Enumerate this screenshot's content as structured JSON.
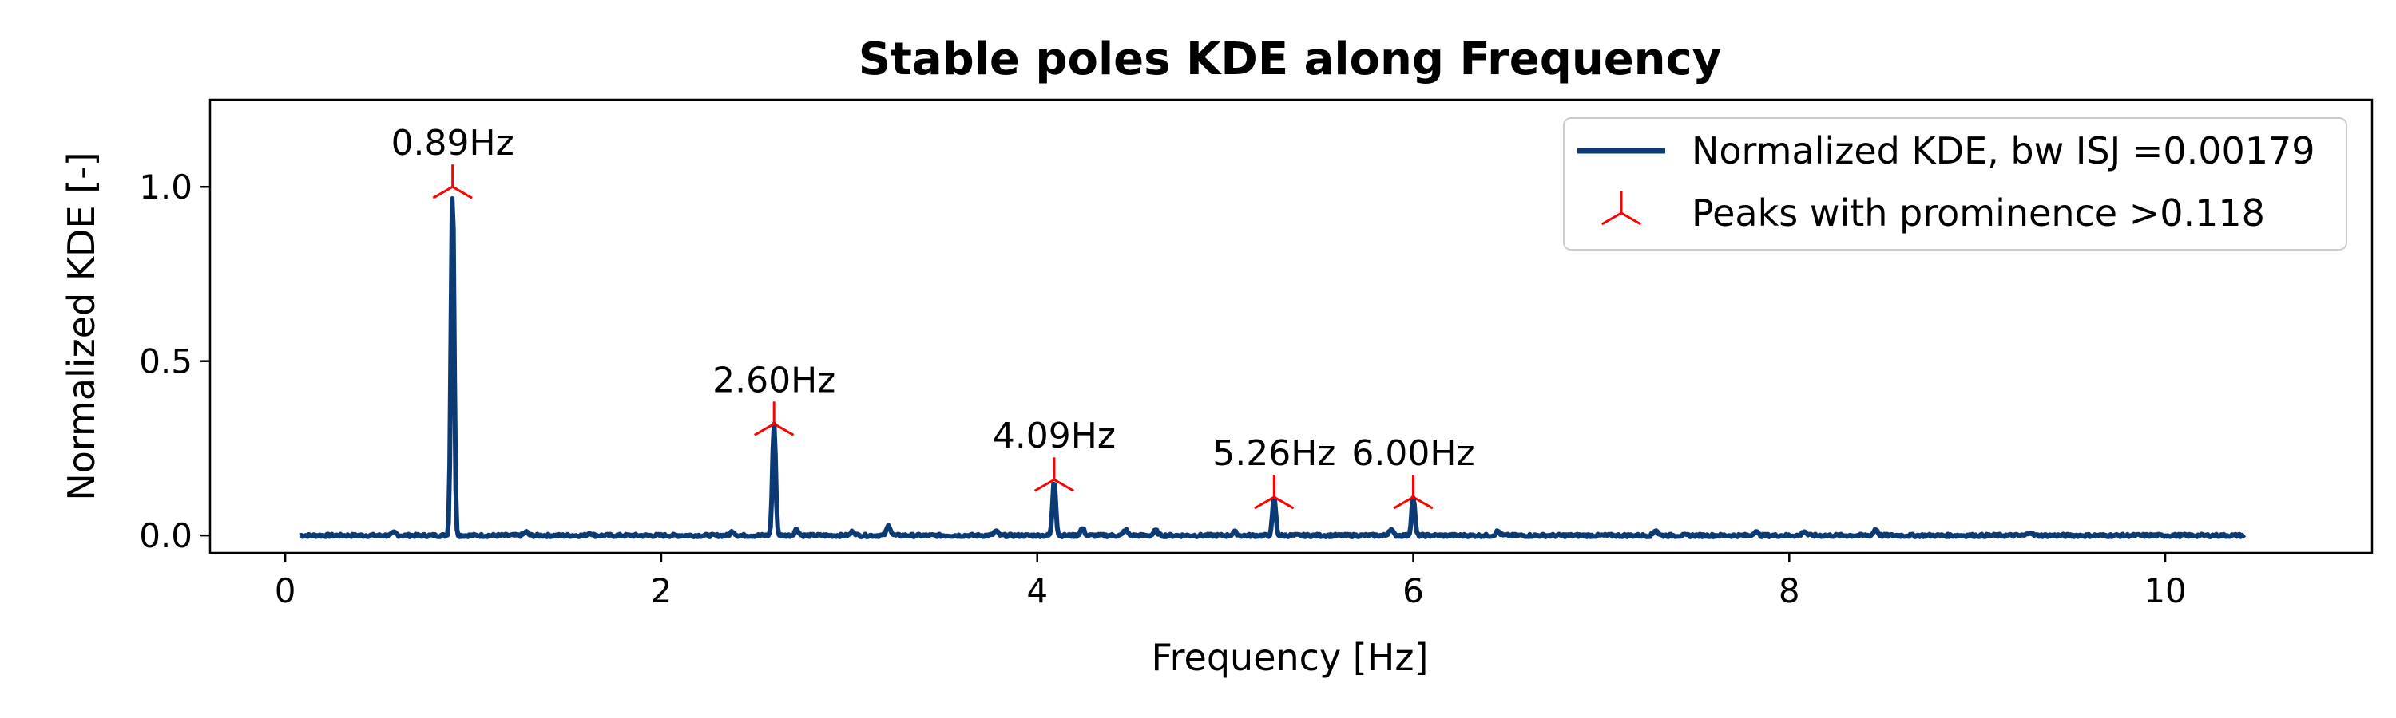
{
  "chart_data": {
    "type": "line",
    "title": "Stable poles KDE along Frequency",
    "xlabel": "Frequency [Hz]",
    "ylabel": "Normalized KDE [-]",
    "xlim": [
      -0.4,
      11.1
    ],
    "ylim": [
      -0.05,
      1.25
    ],
    "x_ticks": [
      0,
      2,
      4,
      6,
      8,
      10
    ],
    "x_tick_labels": [
      "0",
      "2",
      "4",
      "6",
      "8",
      "10"
    ],
    "y_ticks": [
      0.0,
      0.5,
      1.0
    ],
    "y_tick_labels": [
      "0.0",
      "0.5",
      "1.0"
    ],
    "grid": false,
    "legend_position": "top-right",
    "line_color": "#0b3a75",
    "marker_color": "#ff0000",
    "series": [
      {
        "name": "Normalized KDE, bw ISJ =0.00179",
        "kind": "line",
        "x_range": [
          0.08,
          10.42
        ],
        "baseline": 0.0,
        "peaks": [
          {
            "x": 0.89,
            "y": 1.0
          },
          {
            "x": 2.6,
            "y": 0.32
          },
          {
            "x": 4.09,
            "y": 0.16
          },
          {
            "x": 5.26,
            "y": 0.11
          },
          {
            "x": 6.0,
            "y": 0.11
          }
        ],
        "minor_bumps": [
          {
            "x": 0.58,
            "y": 0.008
          },
          {
            "x": 1.28,
            "y": 0.01
          },
          {
            "x": 1.62,
            "y": 0.008
          },
          {
            "x": 2.38,
            "y": 0.012
          },
          {
            "x": 2.72,
            "y": 0.018
          },
          {
            "x": 3.02,
            "y": 0.012
          },
          {
            "x": 3.21,
            "y": 0.028
          },
          {
            "x": 3.78,
            "y": 0.012
          },
          {
            "x": 4.24,
            "y": 0.02
          },
          {
            "x": 4.47,
            "y": 0.016
          },
          {
            "x": 4.63,
            "y": 0.014
          },
          {
            "x": 5.05,
            "y": 0.01
          },
          {
            "x": 5.88,
            "y": 0.018
          },
          {
            "x": 6.45,
            "y": 0.012
          },
          {
            "x": 7.29,
            "y": 0.016
          },
          {
            "x": 7.82,
            "y": 0.012
          },
          {
            "x": 8.08,
            "y": 0.012
          },
          {
            "x": 8.46,
            "y": 0.018
          },
          {
            "x": 9.28,
            "y": 0.01
          }
        ]
      },
      {
        "name": "Peaks with prominence >0.118",
        "kind": "markers",
        "x": [
          0.89,
          2.6,
          4.09,
          5.26,
          6.0
        ],
        "y": [
          1.0,
          0.32,
          0.16,
          0.11,
          0.11
        ]
      }
    ],
    "annotations": [
      "0.89Hz",
      "2.60Hz",
      "4.09Hz",
      "5.26Hz",
      "6.00Hz"
    ]
  }
}
